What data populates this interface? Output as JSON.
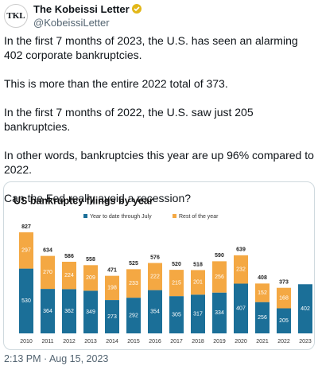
{
  "author": {
    "name": "The Kobeissi Letter",
    "handle": "@KobeissiLetter",
    "avatar_text": "TKL"
  },
  "tweet": {
    "paragraphs": [
      "In the first 7 months of 2023, the U.S. has seen an alarming 402 corporate bankruptcies.",
      "This is more than the entire 2022 total of 373.",
      "In the first 7 months of 2022, the U.S. saw just 205 bankruptcies.",
      "In other words, bankruptcies this year are up 96% compared to 2022.",
      "Can the Fed really avoid a recession?"
    ],
    "timestamp": "2:13 PM · Aug 15, 2023"
  },
  "chart_data": {
    "type": "stacked-bar",
    "title": "US bankruptcy filings by year",
    "categories": [
      "2010",
      "2011",
      "2012",
      "2013",
      "2014",
      "2015",
      "2016",
      "2017",
      "2018",
      "2019",
      "2020",
      "2021",
      "2022",
      "2023"
    ],
    "series": [
      {
        "name": "Year to date through July",
        "color": "#1b6f98",
        "values": [
          530,
          364,
          362,
          349,
          273,
          292,
          354,
          305,
          317,
          334,
          407,
          256,
          205,
          402
        ]
      },
      {
        "name": "Rest of the year",
        "color": "#f4a843",
        "values": [
          297,
          270,
          224,
          209,
          198,
          233,
          222,
          215,
          201,
          256,
          232,
          152,
          168,
          null
        ]
      }
    ],
    "totals": [
      827,
      634,
      586,
      558,
      471,
      525,
      576,
      520,
      518,
      590,
      639,
      408,
      373,
      null
    ]
  }
}
